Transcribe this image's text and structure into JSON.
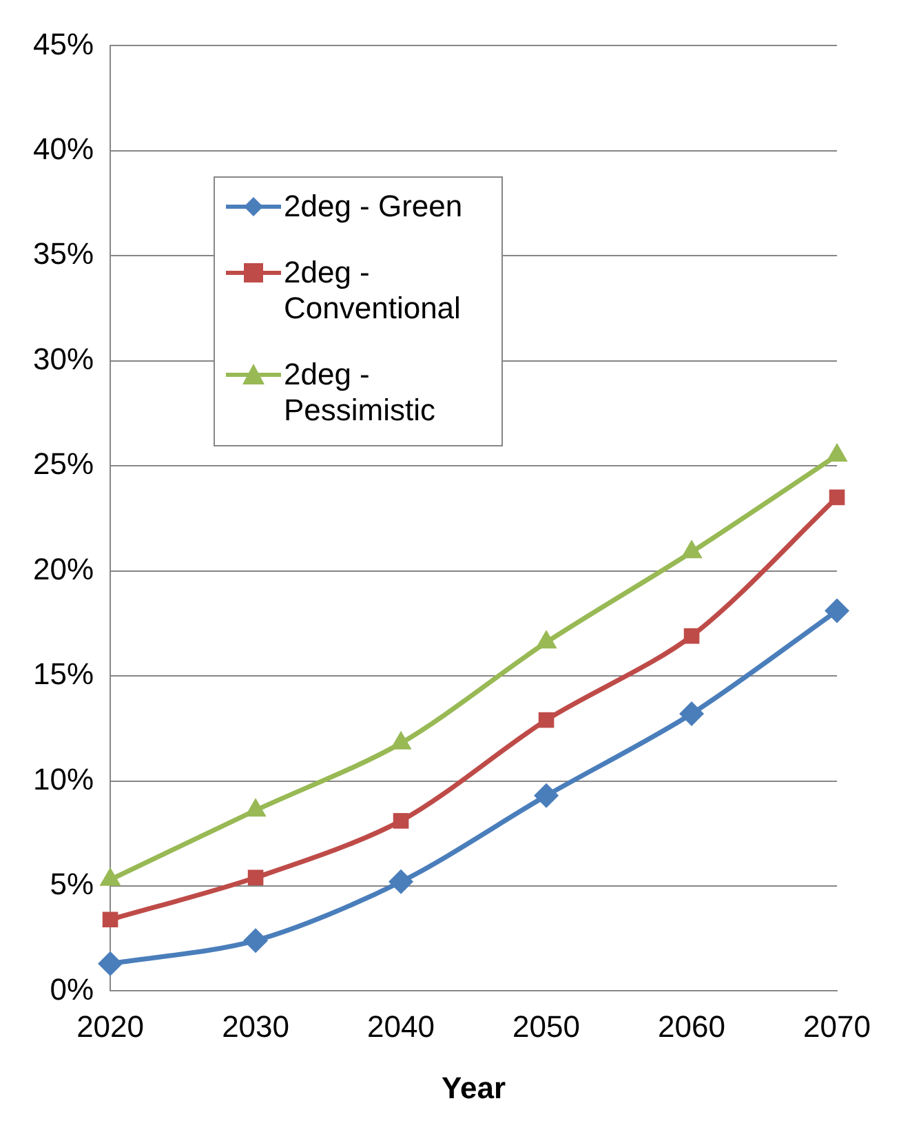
{
  "chart_data": {
    "type": "line",
    "xlabel": "Year",
    "categories": [
      "2020",
      "2030",
      "2040",
      "2050",
      "2060",
      "2070"
    ],
    "series": [
      {
        "name": "2deg - Green",
        "color": "#4a7ebb",
        "marker": "diamond",
        "values": [
          1.3,
          2.4,
          5.2,
          9.3,
          13.2,
          18.1
        ]
      },
      {
        "name": "2deg - Conventional",
        "color": "#be4b48",
        "marker": "square",
        "values": [
          3.4,
          5.4,
          8.1,
          12.9,
          16.9,
          23.5
        ]
      },
      {
        "name": "2deg - Pessimistic",
        "color": "#98b954",
        "marker": "triangle",
        "values": [
          5.3,
          8.6,
          11.8,
          16.6,
          20.9,
          25.5
        ]
      }
    ],
    "ylim": [
      0,
      45
    ],
    "yticks": [
      {
        "value": 0,
        "label": "0%"
      },
      {
        "value": 5,
        "label": "5%"
      },
      {
        "value": 10,
        "label": "10%"
      },
      {
        "value": 15,
        "label": "15%"
      },
      {
        "value": 20,
        "label": "20%"
      },
      {
        "value": 25,
        "label": "25%"
      },
      {
        "value": 30,
        "label": "30%"
      },
      {
        "value": 35,
        "label": "35%"
      },
      {
        "value": 40,
        "label": "40%"
      },
      {
        "value": 45,
        "label": "45%"
      }
    ],
    "grid": "y",
    "legend": "top left",
    "line_style": "solid"
  }
}
